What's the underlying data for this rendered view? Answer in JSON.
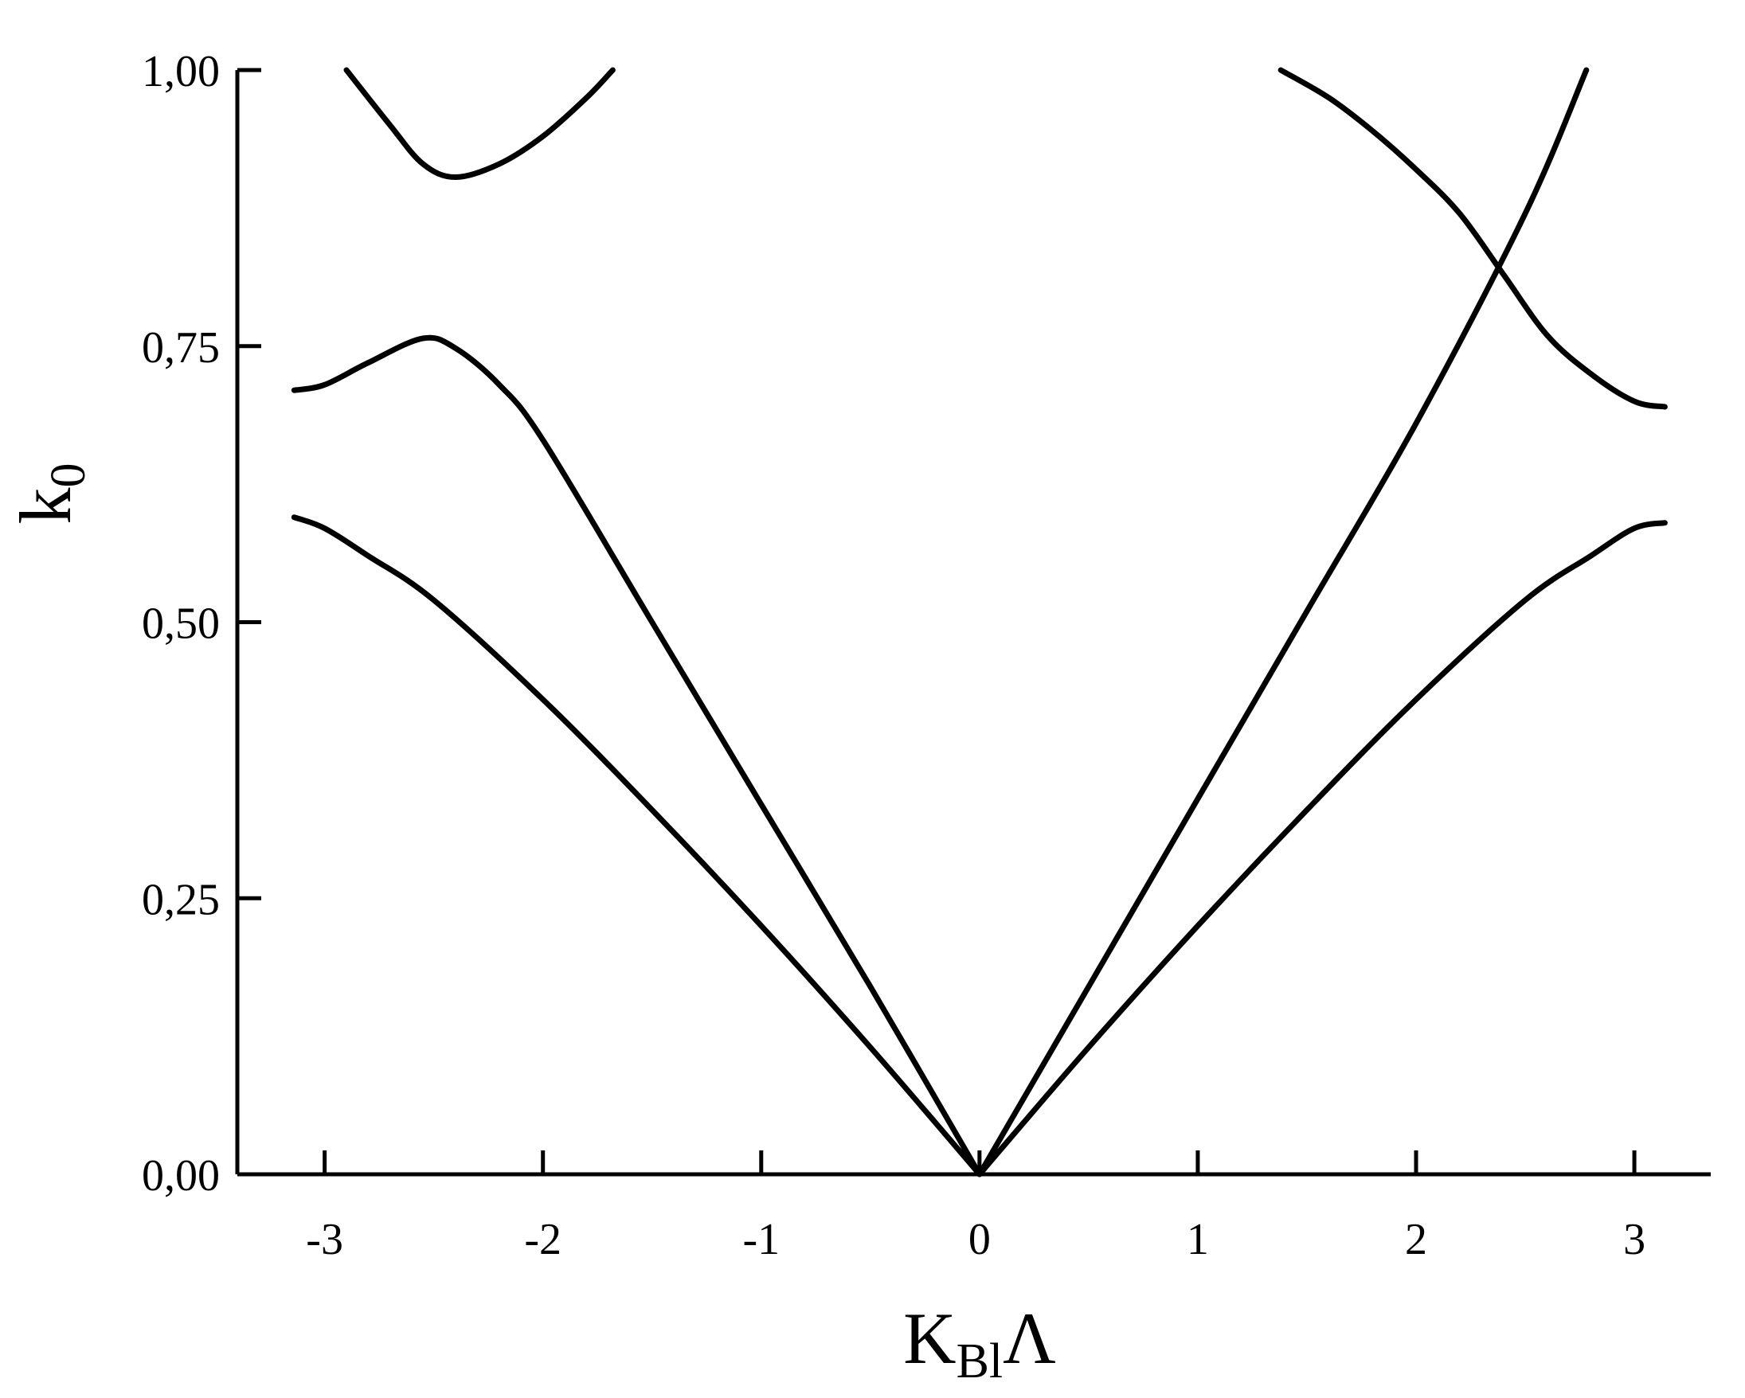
{
  "chart_data": {
    "type": "line",
    "title": "",
    "xlabel": {
      "main": "K",
      "sub": "Bl",
      "after": "Λ"
    },
    "ylabel": {
      "main": "k",
      "sub": "0"
    },
    "xlim": [
      -3.4,
      3.35
    ],
    "ylim": [
      0,
      1.0
    ],
    "grid": false,
    "legend": "none",
    "line_color": "#000000",
    "x_ticks": [
      {
        "value": -3,
        "label": "-3"
      },
      {
        "value": -2,
        "label": "-2"
      },
      {
        "value": -1,
        "label": "-1"
      },
      {
        "value": 0,
        "label": "0"
      },
      {
        "value": 1,
        "label": "1"
      },
      {
        "value": 2,
        "label": "2"
      },
      {
        "value": 3,
        "label": "3"
      }
    ],
    "y_ticks": [
      {
        "value": 0.0,
        "label": "0,00"
      },
      {
        "value": 0.25,
        "label": "0,25"
      },
      {
        "value": 0.5,
        "label": "0,50"
      },
      {
        "value": 0.75,
        "label": "0,75"
      },
      {
        "value": 1.0,
        "label": "1,00"
      }
    ],
    "series": [
      {
        "points": [
          [
            -3.14,
            0.595
          ],
          [
            -3.0,
            0.585
          ],
          [
            -2.8,
            0.56
          ],
          [
            -2.5,
            0.52
          ],
          [
            -2.0,
            0.43
          ],
          [
            -1.5,
            0.33
          ],
          [
            -1.0,
            0.225
          ],
          [
            -0.5,
            0.115
          ],
          [
            0.0,
            0.0
          ]
        ]
      },
      {
        "points": [
          [
            -3.14,
            0.71
          ],
          [
            -3.0,
            0.715
          ],
          [
            -2.8,
            0.735
          ],
          [
            -2.55,
            0.757
          ],
          [
            -2.4,
            0.748
          ],
          [
            -2.2,
            0.715
          ],
          [
            -2.0,
            0.665
          ],
          [
            -1.5,
            0.5
          ],
          [
            -1.0,
            0.335
          ],
          [
            -0.5,
            0.17
          ],
          [
            0.0,
            0.0
          ]
        ]
      },
      {
        "points": [
          [
            -2.9,
            1.0
          ],
          [
            -2.7,
            0.95
          ],
          [
            -2.55,
            0.915
          ],
          [
            -2.4,
            0.903
          ],
          [
            -2.2,
            0.915
          ],
          [
            -2.0,
            0.94
          ],
          [
            -1.8,
            0.975
          ],
          [
            -1.68,
            1.0
          ]
        ]
      },
      {
        "points": [
          [
            0.0,
            0.0
          ],
          [
            0.5,
            0.115
          ],
          [
            1.0,
            0.225
          ],
          [
            1.5,
            0.33
          ],
          [
            2.0,
            0.43
          ],
          [
            2.5,
            0.52
          ],
          [
            2.8,
            0.56
          ],
          [
            3.0,
            0.585
          ],
          [
            3.14,
            0.59
          ]
        ]
      },
      {
        "points": [
          [
            0.0,
            0.0
          ],
          [
            0.5,
            0.17
          ],
          [
            1.0,
            0.34
          ],
          [
            1.5,
            0.51
          ],
          [
            2.0,
            0.68
          ],
          [
            2.5,
            0.87
          ],
          [
            2.78,
            1.0
          ]
        ]
      },
      {
        "points": [
          [
            1.38,
            1.0
          ],
          [
            1.6,
            0.975
          ],
          [
            1.8,
            0.945
          ],
          [
            2.0,
            0.91
          ],
          [
            2.2,
            0.87
          ],
          [
            2.4,
            0.815
          ],
          [
            2.6,
            0.76
          ],
          [
            2.8,
            0.725
          ],
          [
            3.0,
            0.7
          ],
          [
            3.14,
            0.695
          ]
        ]
      }
    ]
  }
}
